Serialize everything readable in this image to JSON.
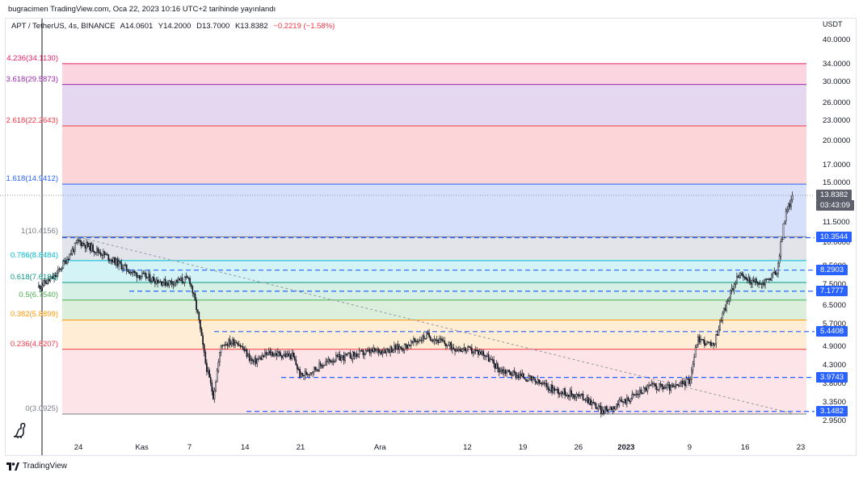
{
  "header": {
    "published_line": "bugracimen TradingView.com, Oca 22, 2023 10:16 UTC+2 tarihinde yayınlandı",
    "symbol": "APT / TetherUS, 4s, BINANCE",
    "open": "A14.0601",
    "high": "Y14.2000",
    "low": "D13.7000",
    "close": "K13.8382",
    "change": "−0.2219 (−1.58%)"
  },
  "axis_unit": "USDT",
  "footer": {
    "brand": "TradingView"
  },
  "chart_data": {
    "type": "candlestick",
    "scale": "log",
    "ylim": [
      2.8,
      44
    ],
    "price_ticks": [
      "40.0000",
      "34.0000",
      "30.0000",
      "26.0000",
      "23.0000",
      "20.0000",
      "17.0000",
      "15.0000",
      "11.5000",
      "10.0000",
      "8.5000",
      "7.5000",
      "6.5000",
      "5.7000",
      "4.9000",
      "4.3000",
      "3.8000",
      "3.3500",
      "2.9500"
    ],
    "time_ticks": [
      {
        "label": "24",
        "bold": false
      },
      {
        "label": "Kas",
        "bold": false
      },
      {
        "label": "7",
        "bold": false
      },
      {
        "label": "14",
        "bold": false
      },
      {
        "label": "21",
        "bold": false
      },
      {
        "label": "Ara",
        "bold": false
      },
      {
        "label": "12",
        "bold": false
      },
      {
        "label": "19",
        "bold": false
      },
      {
        "label": "26",
        "bold": false
      },
      {
        "label": "2023",
        "bold": true
      },
      {
        "label": "9",
        "bold": false
      },
      {
        "label": "16",
        "bold": false
      },
      {
        "label": "23",
        "bold": false
      }
    ],
    "fib_levels": [
      {
        "label": "0(3.0925)",
        "ratio": 0,
        "price": 3.0925,
        "color": "#787b86"
      },
      {
        "label": "0.236(4.8207)",
        "ratio": 0.236,
        "price": 4.8207,
        "color": "#f23645"
      },
      {
        "label": "0.382(5.8899)",
        "ratio": 0.382,
        "price": 5.8899,
        "color": "#ff9800"
      },
      {
        "label": "0.5(6.7540)",
        "ratio": 0.5,
        "price": 6.754,
        "color": "#4caf50"
      },
      {
        "label": "0.618(7.6181)",
        "ratio": 0.618,
        "price": 7.6181,
        "color": "#089981"
      },
      {
        "label": "0.786(8.8484)",
        "ratio": 0.786,
        "price": 8.8484,
        "color": "#00bcd4"
      },
      {
        "label": "1(10.4156)",
        "ratio": 1,
        "price": 10.4156,
        "color": "#787b86"
      },
      {
        "label": "1.618(14.9412)",
        "ratio": 1.618,
        "price": 14.9412,
        "color": "#2962ff"
      },
      {
        "label": "2.618(22.2643)",
        "ratio": 2.618,
        "price": 22.2643,
        "color": "#f23645"
      },
      {
        "label": "3.618(29.5873)",
        "ratio": 3.618,
        "price": 29.5873,
        "color": "#9c27b0"
      },
      {
        "label": "4.236(34.1130)",
        "ratio": 4.236,
        "price": 34.113,
        "color": "#e91e63"
      }
    ],
    "horizontal_levels": [
      "10.3544",
      "8.2903",
      "7.1777",
      "5.4408",
      "3.9743",
      "3.1482"
    ],
    "last_price": {
      "value": "13.8382",
      "countdown": "03:43:09"
    },
    "price_path": [
      {
        "date": "2022-10-19",
        "price": 7.4
      },
      {
        "date": "2022-10-21",
        "price": 7.9
      },
      {
        "date": "2022-10-24",
        "price": 10.1
      },
      {
        "date": "2022-10-27",
        "price": 9.3
      },
      {
        "date": "2022-10-31",
        "price": 8.1
      },
      {
        "date": "2022-11-04",
        "price": 7.6
      },
      {
        "date": "2022-11-07",
        "price": 7.8
      },
      {
        "date": "2022-11-08",
        "price": 6.2
      },
      {
        "date": "2022-11-09",
        "price": 4.4
      },
      {
        "date": "2022-11-10",
        "price": 3.5
      },
      {
        "date": "2022-11-11",
        "price": 5.0
      },
      {
        "date": "2022-11-13",
        "price": 5.1
      },
      {
        "date": "2022-11-15",
        "price": 4.4
      },
      {
        "date": "2022-11-17",
        "price": 4.7
      },
      {
        "date": "2022-11-20",
        "price": 4.6
      },
      {
        "date": "2022-11-21",
        "price": 4.0
      },
      {
        "date": "2022-11-25",
        "price": 4.5
      },
      {
        "date": "2022-11-29",
        "price": 4.7
      },
      {
        "date": "2022-12-04",
        "price": 4.9
      },
      {
        "date": "2022-12-07",
        "price": 5.3
      },
      {
        "date": "2022-12-10",
        "price": 4.9
      },
      {
        "date": "2022-12-14",
        "price": 4.7
      },
      {
        "date": "2022-12-16",
        "price": 4.2
      },
      {
        "date": "2022-12-19",
        "price": 4.0
      },
      {
        "date": "2022-12-23",
        "price": 3.65
      },
      {
        "date": "2022-12-27",
        "price": 3.45
      },
      {
        "date": "2022-12-29",
        "price": 3.15
      },
      {
        "date": "2023-01-01",
        "price": 3.4
      },
      {
        "date": "2023-01-04",
        "price": 3.75
      },
      {
        "date": "2023-01-07",
        "price": 3.7
      },
      {
        "date": "2023-01-09",
        "price": 3.9
      },
      {
        "date": "2023-01-10",
        "price": 5.2
      },
      {
        "date": "2023-01-12",
        "price": 4.9
      },
      {
        "date": "2023-01-13",
        "price": 6.0
      },
      {
        "date": "2023-01-15",
        "price": 8.0
      },
      {
        "date": "2023-01-18",
        "price": 7.5
      },
      {
        "date": "2023-01-20",
        "price": 8.2
      },
      {
        "date": "2023-01-21",
        "price": 12.0
      },
      {
        "date": "2023-01-22",
        "price": 13.8
      }
    ],
    "trendline": [
      {
        "date": "2022-10-24",
        "price": 10.4
      },
      {
        "date": "2023-01-22",
        "price": 3.1
      }
    ]
  }
}
